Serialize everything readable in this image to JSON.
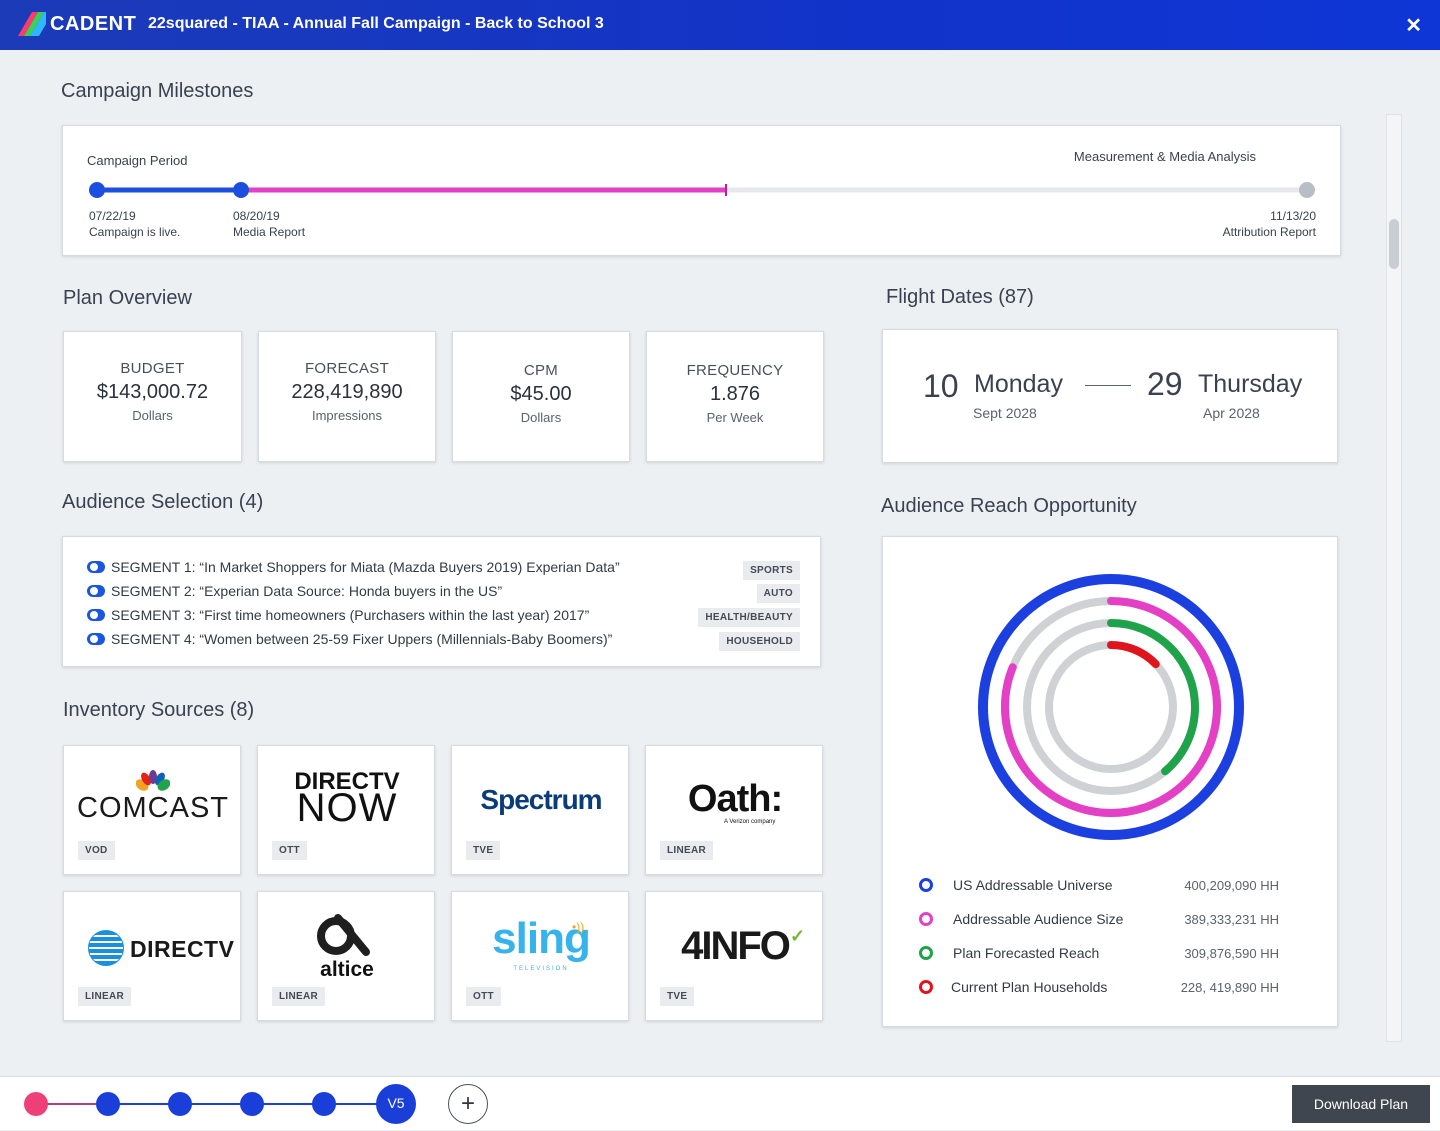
{
  "header": {
    "logo_text": "CADENT",
    "title": "22squared - TIAA - Annual Fall Campaign - Back to School 3",
    "close_icon": "close-icon"
  },
  "milestones": {
    "heading": "Campaign Milestones",
    "period_label": "Campaign Period",
    "measurement_label": "Measurement & Media Analysis",
    "points": [
      {
        "date": "07/22/19",
        "label": "Campaign is live."
      },
      {
        "date": "08/20/19",
        "label": "Media Report"
      },
      {
        "date": "11/13/20",
        "label": "Attribution Report"
      }
    ],
    "colors": {
      "live": "#1c4fe0",
      "progress": "#e340c6",
      "pending": "#e6e8eb",
      "end": "#b8bec6"
    }
  },
  "plan_overview": {
    "heading": "Plan Overview",
    "stats": [
      {
        "label": "BUDGET",
        "value": "$143,000.72",
        "unit": "Dollars"
      },
      {
        "label": "FORECAST",
        "value": "228,419,890",
        "unit": "Impressions"
      },
      {
        "label": "CPM",
        "value": "$45.00",
        "unit": "Dollars"
      },
      {
        "label": "FREQUENCY",
        "value": "1.876",
        "unit": "Per Week"
      }
    ]
  },
  "flight_dates": {
    "heading": "Flight Dates (87)",
    "start": {
      "day": "10",
      "weekday": "Monday",
      "month_year": "Sept 2028"
    },
    "end": {
      "day": "29",
      "weekday": "Thursday",
      "month_year": "Apr 2028"
    }
  },
  "audience_selection": {
    "heading": "Audience Selection (4)",
    "segments": [
      {
        "text": "SEGMENT 1: “In Market Shoppers for Miata (Mazda Buyers 2019) Experian Data”",
        "tag": "SPORTS"
      },
      {
        "text": "SEGMENT 2: “Experian Data Source: Honda buyers in the US”",
        "tag": "AUTO"
      },
      {
        "text": "SEGMENT 3: “First time homeowners (Purchasers within the last year) 2017”",
        "tag": "HEALTH/BEAUTY"
      },
      {
        "text": "SEGMENT 4: “Women between 25-59 Fixer Uppers (Millennials-Baby Boomers)”",
        "tag": "HOUSEHOLD"
      }
    ]
  },
  "inventory": {
    "heading": "Inventory Sources (8)",
    "sources": [
      {
        "logo": "COMCAST",
        "tag": "VOD"
      },
      {
        "logo_line1": "DIRECTV",
        "logo_line2": "NOW",
        "tag": "OTT"
      },
      {
        "logo": "Spectrum",
        "tag": "TVE"
      },
      {
        "logo": "Oath:",
        "sub": "A Verizon company",
        "tag": "LINEAR"
      },
      {
        "logo": "DIRECTV",
        "tag": "LINEAR"
      },
      {
        "logo": "altice",
        "tag": "LINEAR"
      },
      {
        "logo": "sling",
        "sub": "TELEVISION",
        "tag": "OTT"
      },
      {
        "logo": "4INFO",
        "tag": "TVE"
      }
    ]
  },
  "reach": {
    "heading": "Audience Reach Opportunity",
    "legend": [
      {
        "label": "US Addressable Universe",
        "value": "400,209,090 HH",
        "color": "#1c3fe0"
      },
      {
        "label": "Addressable Audience Size",
        "value": "389,333,231 HH",
        "color": "#e340c6"
      },
      {
        "label": "Plan Forecasted Reach",
        "value": "309,876,590 HH",
        "color": "#1fa34a"
      },
      {
        "label": "Current Plan Households",
        "value": "228, 419,890 HH",
        "color": "#e0141c"
      }
    ]
  },
  "footer": {
    "version_label": "V5",
    "add_icon": "plus-icon",
    "download_label": "Download Plan"
  }
}
